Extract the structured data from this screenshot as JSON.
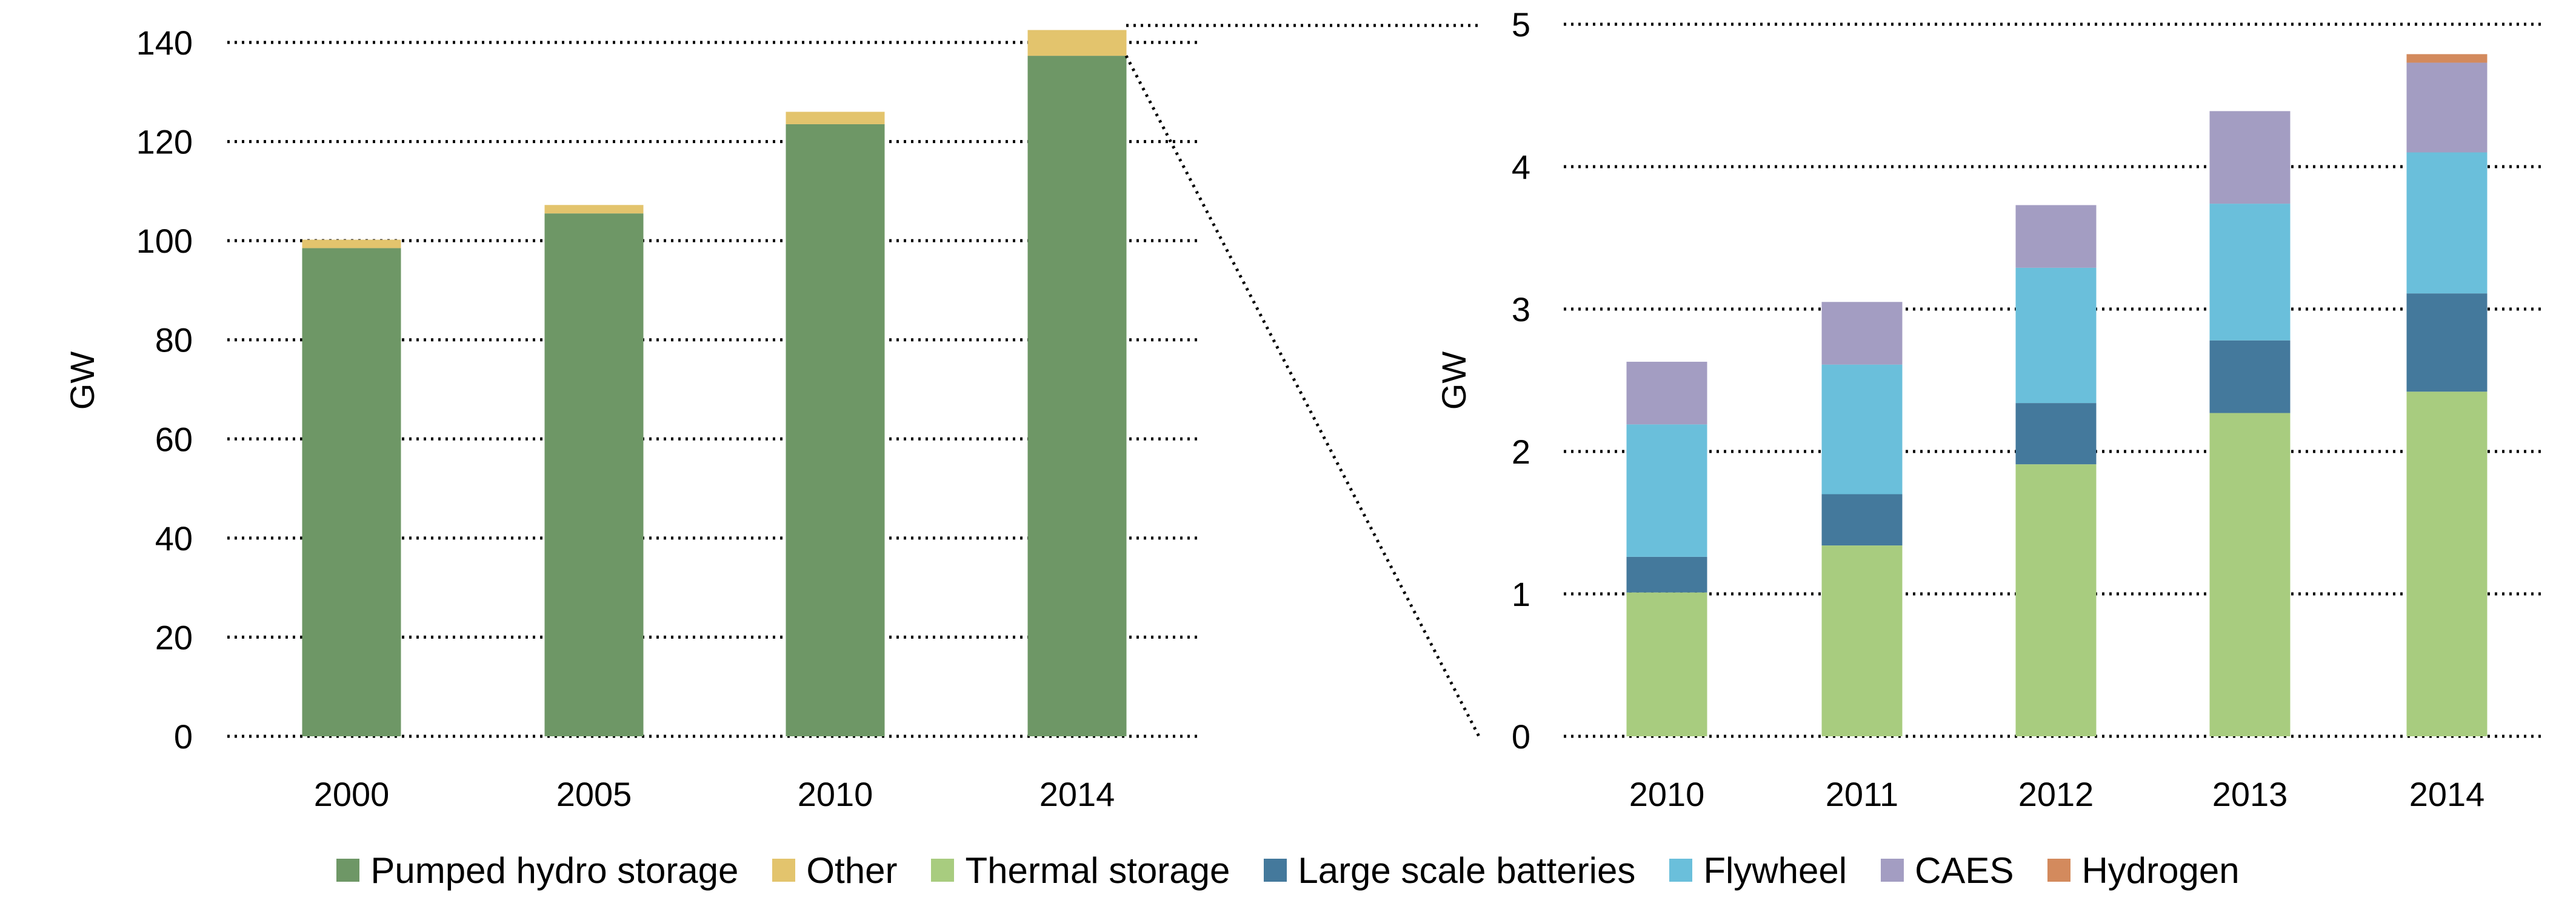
{
  "chart_data": [
    {
      "type": "bar",
      "stacked": true,
      "categories": [
        "2000",
        "2005",
        "2010",
        "2014"
      ],
      "series": [
        {
          "name": "Pumped hydro storage",
          "color": "#6e9766",
          "values": [
            98.5,
            105.5,
            123.5,
            137.3
          ]
        },
        {
          "name": "Other",
          "color": "#e3c46d",
          "values": [
            1.7,
            1.7,
            2.5,
            5.2
          ]
        }
      ],
      "ylabel": "GW",
      "ylim": [
        0,
        140
      ],
      "yticks": [
        "0",
        "20",
        "40",
        "60",
        "80",
        "100",
        "120",
        "140"
      ],
      "grid": true
    },
    {
      "type": "bar",
      "stacked": true,
      "categories": [
        "2010",
        "2011",
        "2012",
        "2013",
        "2014"
      ],
      "series": [
        {
          "name": "Thermal storage",
          "color": "#a8cc7f",
          "values": [
            1.01,
            1.34,
            1.91,
            2.27,
            2.42
          ]
        },
        {
          "name": "Large scale batteries",
          "color": "#44799c",
          "values": [
            0.25,
            0.36,
            0.43,
            0.51,
            0.69
          ]
        },
        {
          "name": "Flywheel",
          "color": "#6abfdb",
          "values": [
            0.93,
            0.91,
            0.95,
            0.96,
            0.99
          ]
        },
        {
          "name": "CAES",
          "color": "#a39dc2",
          "values": [
            0.44,
            0.44,
            0.44,
            0.65,
            0.63
          ]
        },
        {
          "name": "Hydrogen",
          "color": "#d38a5d",
          "values": [
            0,
            0,
            0,
            0,
            0.06
          ]
        }
      ],
      "ylabel": "GW",
      "ylim": [
        0,
        5
      ],
      "yticks": [
        "0",
        "1",
        "2",
        "3",
        "4",
        "5"
      ],
      "grid": true
    }
  ],
  "legend": [
    {
      "name": "Pumped hydro storage",
      "color": "#6e9766"
    },
    {
      "name": "Other",
      "color": "#e3c46d"
    },
    {
      "name": "Thermal storage",
      "color": "#a8cc7f"
    },
    {
      "name": "Large scale batteries",
      "color": "#44799c"
    },
    {
      "name": "Flywheel",
      "color": "#6abfdb"
    },
    {
      "name": "CAES",
      "color": "#a39dc2"
    },
    {
      "name": "Hydrogen",
      "color": "#d38a5d"
    }
  ]
}
